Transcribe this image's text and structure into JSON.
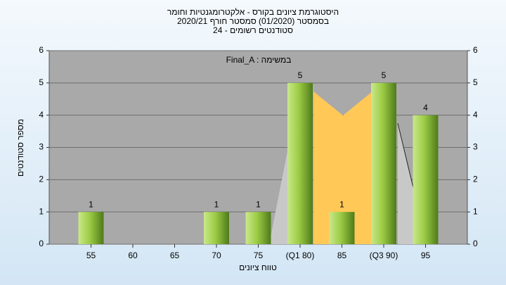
{
  "chart_data": {
    "type": "bar",
    "title": [
      "היסטוגרמת ציונים בקורס - אלקטרומגנטיות וחומר",
      "בסמסטר  (01/2020)  סמסטר חורף  2020/21",
      "סטודנטים רשומים - 24"
    ],
    "annotation": "Final_A : במשימה",
    "x_label": "טווח ציונים",
    "y_label": "מספר סטודנטים",
    "categories": [
      "55",
      "60",
      "65",
      "70",
      "75",
      "(Q1 80)",
      "85",
      "(Q3 90)",
      "95"
    ],
    "values": [
      1,
      0,
      0,
      1,
      1,
      5,
      1,
      5,
      4
    ],
    "color": "#9ccc45",
    "ylim": [
      0,
      6
    ],
    "yticks": [
      0,
      1,
      2,
      3,
      4,
      5,
      6
    ],
    "y2lim": [
      0,
      6
    ],
    "y2ticks": [
      0,
      1,
      2,
      3,
      4,
      5,
      6
    ],
    "grid": true
  }
}
